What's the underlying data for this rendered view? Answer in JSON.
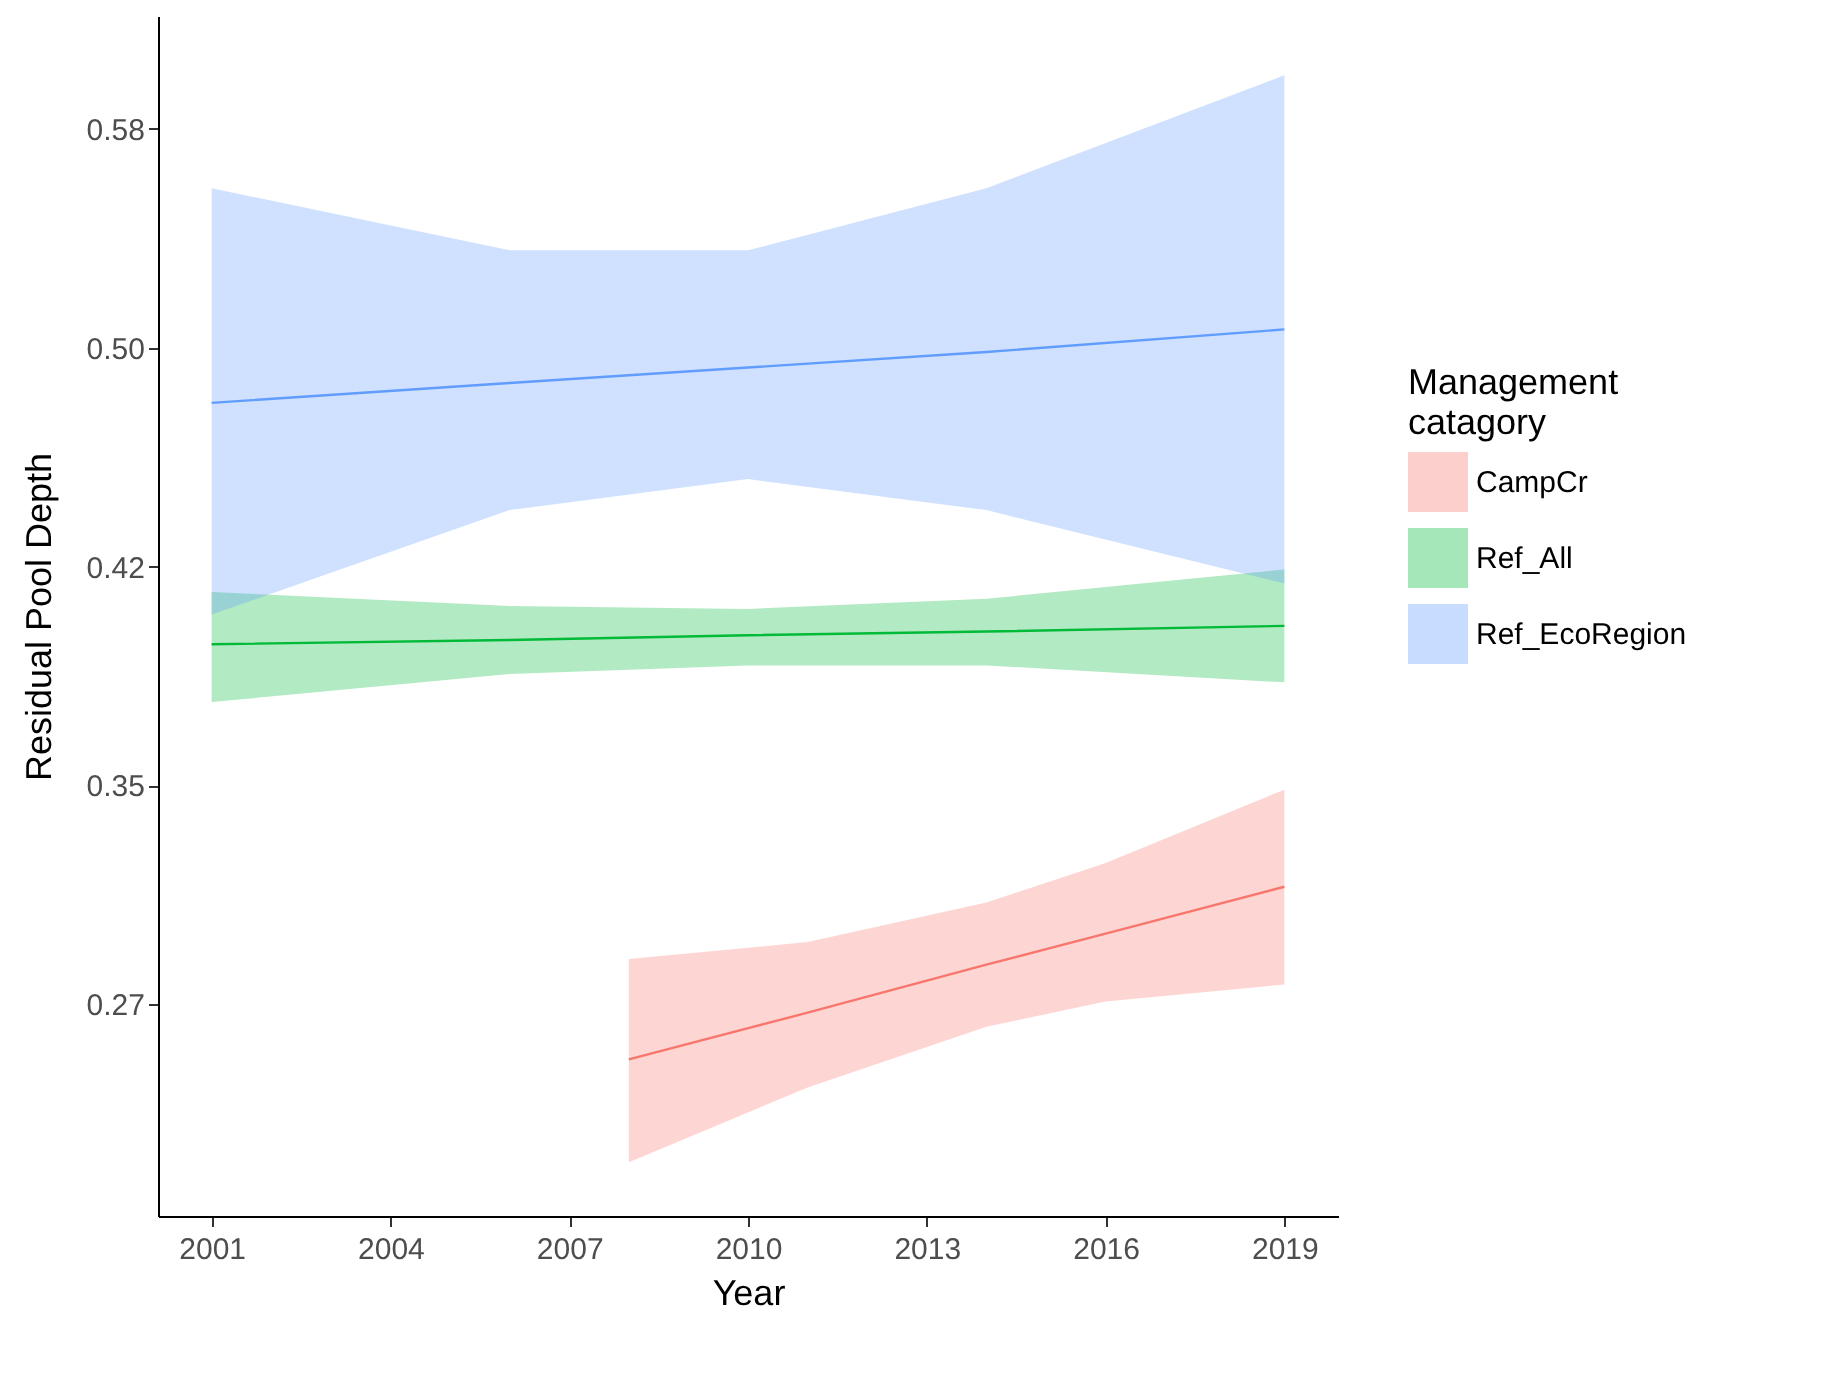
{
  "chart_data": {
    "type": "line",
    "xlabel": "Year",
    "ylabel": "Residual Pool Depth",
    "legend_title": "Management catagory",
    "legend": "right",
    "grid": false,
    "xlim": [
      2000.1,
      2019.9
    ],
    "xticks": [
      2001,
      2004,
      2007,
      2010,
      2013,
      2016,
      2019
    ],
    "ylim": [
      0.195,
      0.62
    ],
    "yticks": [
      {
        "value": 0.27,
        "label": "0.27"
      },
      {
        "value": 0.3475,
        "label": "0.35"
      },
      {
        "value": 0.425,
        "label": "0.42"
      },
      {
        "value": 0.5025,
        "label": "0.50"
      },
      {
        "value": 0.58,
        "label": "0.58"
      }
    ],
    "series": [
      {
        "name": "CampCr",
        "color": "#f8766d",
        "x": [
          2008,
          2011,
          2014,
          2016,
          2019
        ],
        "values": [
          0.2505,
          0.267,
          0.284,
          0.295,
          0.3116
        ],
        "lower": [
          0.214,
          0.2405,
          0.262,
          0.271,
          0.277
        ],
        "upper": [
          0.286,
          0.292,
          0.306,
          0.32,
          0.346
        ]
      },
      {
        "name": "Ref_All",
        "color": "#00ba38",
        "x": [
          2001,
          2006,
          2010,
          2014,
          2019
        ],
        "values": [
          0.3975,
          0.399,
          0.4007,
          0.402,
          0.404
        ],
        "lower": [
          0.377,
          0.387,
          0.39,
          0.39,
          0.384
        ],
        "upper": [
          0.416,
          0.411,
          0.41,
          0.4136,
          0.424
        ]
      },
      {
        "name": "Ref_EcoRegion",
        "color": "#619cff",
        "x": [
          2001,
          2006,
          2010,
          2014,
          2019
        ],
        "values": [
          0.483,
          0.49,
          0.4955,
          0.501,
          0.509
        ],
        "lower": [
          0.408,
          0.445,
          0.456,
          0.445,
          0.419
        ],
        "upper": [
          0.559,
          0.537,
          0.537,
          0.559,
          0.599
        ]
      }
    ]
  }
}
